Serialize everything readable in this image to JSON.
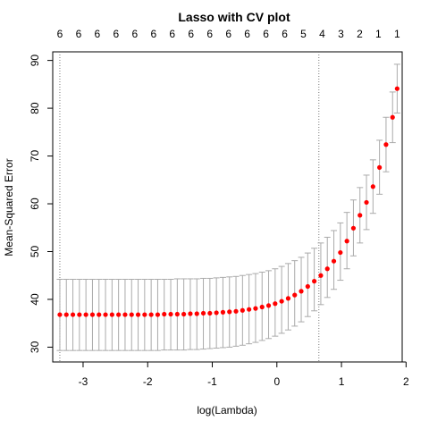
{
  "chart_data": {
    "type": "scatter",
    "title": "Lasso with CV plot",
    "xlabel": "log(Lambda)",
    "ylabel": "Mean-Squared Error",
    "xlim": [
      -3.47,
      1.94
    ],
    "ylim": [
      26.9,
      91.8
    ],
    "x_ticks": [
      -3,
      -2,
      -1,
      0,
      1,
      2
    ],
    "y_ticks": [
      30,
      40,
      50,
      60,
      70,
      80,
      90
    ],
    "top_axis_labels": [
      "6",
      "6",
      "6",
      "6",
      "6",
      "6",
      "6",
      "6",
      "6",
      "6",
      "6",
      "6",
      "6",
      "5",
      "4",
      "3",
      "2",
      "1",
      "1"
    ],
    "vertical_reference_lines": [
      -3.36,
      0.65
    ],
    "point_color": "#ff0000",
    "errorbar_color": "#aaaaaa",
    "reference_line_color": "#777777",
    "x": [
      -3.36,
      -3.259,
      -3.158,
      -3.057,
      -2.956,
      -2.855,
      -2.754,
      -2.653,
      -2.552,
      -2.451,
      -2.35,
      -2.249,
      -2.148,
      -2.047,
      -1.946,
      -1.845,
      -1.744,
      -1.643,
      -1.542,
      -1.441,
      -1.34,
      -1.239,
      -1.138,
      -1.037,
      -0.936,
      -0.835,
      -0.734,
      -0.633,
      -0.532,
      -0.431,
      -0.33,
      -0.229,
      -0.128,
      -0.027,
      0.074,
      0.175,
      0.276,
      0.377,
      0.478,
      0.579,
      0.68,
      0.781,
      0.882,
      0.983,
      1.084,
      1.185,
      1.286,
      1.387,
      1.488,
      1.589,
      1.69,
      1.791
    ],
    "y": [
      36.8,
      36.8,
      36.8,
      36.8,
      36.8,
      36.8,
      36.8,
      36.8,
      36.8,
      36.8,
      36.8,
      36.8,
      36.8,
      36.8,
      36.8,
      36.8,
      36.9,
      36.9,
      36.9,
      36.9,
      37.0,
      37.0,
      37.1,
      37.1,
      37.2,
      37.3,
      37.4,
      37.5,
      37.7,
      37.9,
      38.1,
      38.4,
      38.7,
      39.1,
      39.6,
      40.2,
      40.9,
      41.7,
      42.7,
      43.8,
      45.0,
      46.4,
      48.0,
      49.8,
      52.2,
      54.9,
      57.6,
      60.3,
      63.6,
      67.6,
      72.4,
      78.1
    ],
    "y_upper": [
      44.2,
      44.2,
      44.2,
      44.2,
      44.2,
      44.2,
      44.2,
      44.2,
      44.2,
      44.2,
      44.2,
      44.2,
      44.2,
      44.2,
      44.2,
      44.2,
      44.2,
      44.2,
      44.3,
      44.3,
      44.3,
      44.3,
      44.4,
      44.4,
      44.5,
      44.6,
      44.7,
      44.8,
      45.0,
      45.2,
      45.4,
      45.7,
      46.0,
      46.4,
      46.9,
      47.5,
      48.1,
      48.8,
      49.7,
      50.7,
      51.8,
      53.0,
      54.4,
      56.0,
      58.2,
      60.8,
      63.4,
      66.0,
      69.2,
      73.3,
      78.1,
      83.4
    ],
    "y_lower": [
      29.3,
      29.3,
      29.3,
      29.3,
      29.3,
      29.3,
      29.3,
      29.3,
      29.3,
      29.3,
      29.3,
      29.3,
      29.3,
      29.3,
      29.3,
      29.3,
      29.4,
      29.4,
      29.4,
      29.4,
      29.5,
      29.5,
      29.6,
      29.7,
      29.8,
      29.9,
      30.0,
      30.2,
      30.4,
      30.7,
      31.0,
      31.4,
      31.8,
      32.3,
      32.9,
      33.6,
      34.4,
      35.3,
      36.4,
      37.6,
      38.9,
      40.4,
      42.1,
      44.0,
      46.4,
      49.1,
      51.8,
      54.6,
      58.0,
      62.0,
      66.7,
      72.8
    ],
    "x_extra": [
      1.862
    ],
    "y_extra": [
      84.1
    ],
    "y_extra_upper": [
      89.2
    ],
    "y_extra_lower": [
      79.0
    ]
  }
}
